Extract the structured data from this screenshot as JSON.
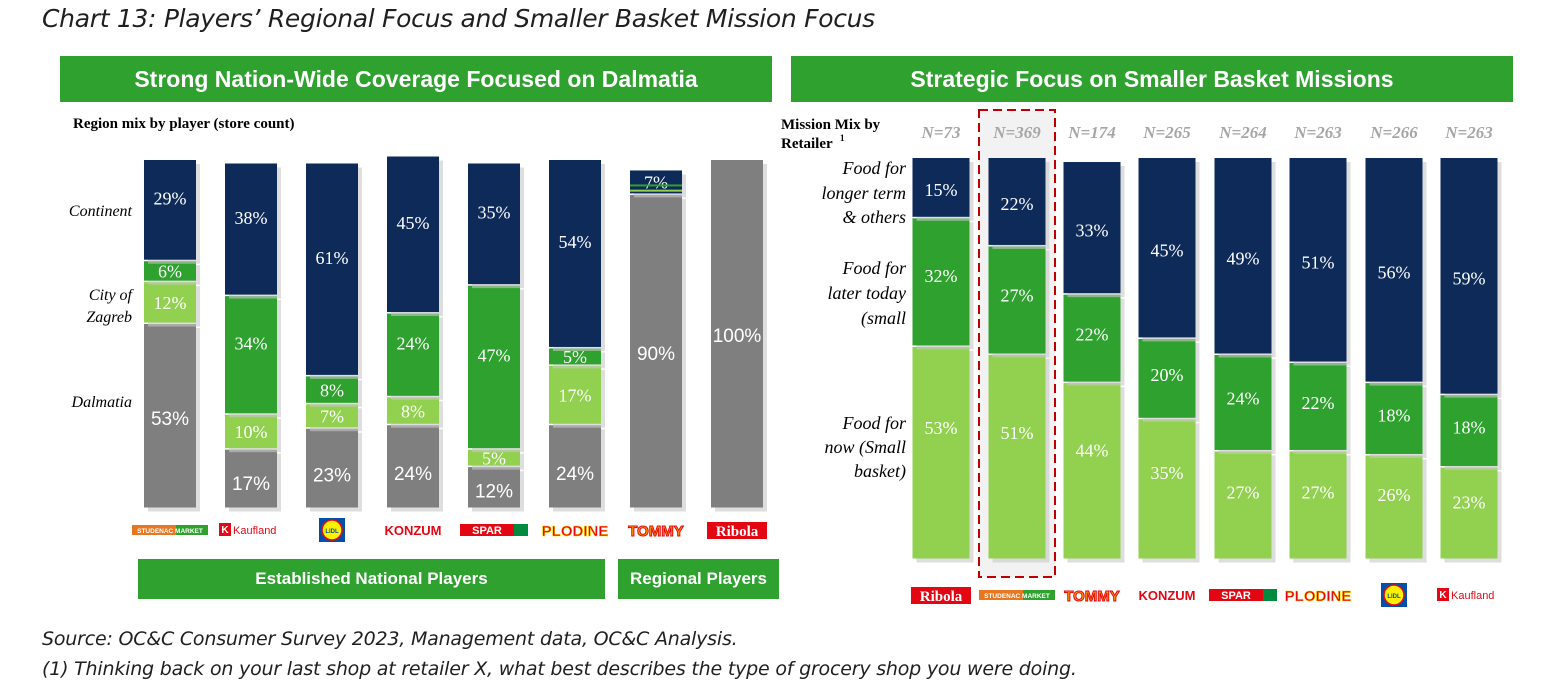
{
  "page": {
    "title": "Chart 13: Players’ Regional Focus and Smaller Basket Mission Focus",
    "source": "Source: OC&C Consumer Survey 2023, Management data, OC&C Analysis.",
    "footnote": "(1) Thinking back on your last shop at retailer X, what best describes the type of grocery shop you were doing."
  },
  "colors": {
    "navy": "#0d2a58",
    "green": "#2ea12e",
    "light_green": "#92d050",
    "grey": "#7f7f7f",
    "band_green": "#2ea12e",
    "highlight_red": "#c00000"
  },
  "chart_data": [
    {
      "type": "bar",
      "stacked": true,
      "title": "Strong Nation-Wide Coverage Focused on Dalmatia",
      "subtitle": "Region mix by player (store count)",
      "categories": [
        "Studenac Market",
        "Kaufland",
        "Lidl",
        "Konzum",
        "Spar",
        "Plodine",
        "Tommy",
        "Ribola"
      ],
      "series": [
        {
          "name": "Dalmatia",
          "color": "grey",
          "values": [
            53,
            17,
            23,
            24,
            12,
            24,
            90,
            100
          ]
        },
        {
          "name": "City of Zagreb",
          "color": "light_green",
          "values": [
            12,
            10,
            7,
            8,
            5,
            17,
            null,
            null
          ]
        },
        {
          "name": "",
          "color": "green",
          "values": [
            6,
            34,
            8,
            24,
            47,
            5,
            null,
            null
          ]
        },
        {
          "name": "Continent",
          "color": "navy",
          "values": [
            29,
            38,
            61,
            45,
            35,
            54,
            7,
            null
          ]
        }
      ],
      "row_labels": [
        "Continent",
        "City of Zagreb",
        "Dalmatia"
      ],
      "groups": [
        {
          "label": "Established National Players"
        },
        {
          "label": "Regional Players"
        }
      ],
      "ylim": [
        0,
        100
      ]
    },
    {
      "type": "bar",
      "stacked": true,
      "title": "Strategic Focus on Smaller Basket Missions",
      "subtitle": "Mission Mix by Retailer",
      "subtitle_sup": "1",
      "categories": [
        "Ribola",
        "Studenac Market",
        "Tommy",
        "Konzum",
        "Spar",
        "Plodine",
        "Lidl",
        "Kaufland"
      ],
      "sample_sizes": [
        "N=73",
        "N=369",
        "N=174",
        "N=265",
        "N=264",
        "N=263",
        "N=266",
        "N=263"
      ],
      "highlighted": "Studenac Market",
      "series": [
        {
          "name": "Food for now (Small basket)",
          "color": "light_green",
          "values": [
            53,
            51,
            44,
            35,
            27,
            27,
            26,
            23
          ]
        },
        {
          "name": "Food for later today (small",
          "color": "green",
          "values": [
            32,
            27,
            22,
            20,
            24,
            22,
            18,
            18
          ]
        },
        {
          "name": "Food for longer term & others",
          "color": "navy",
          "values": [
            15,
            22,
            33,
            45,
            49,
            51,
            56,
            59
          ]
        }
      ],
      "ylim": [
        0,
        100
      ]
    }
  ],
  "logos": {
    "studenac": "STUDENAC MARKET",
    "kaufland": "Kaufland",
    "lidl": "LIDL",
    "konzum": "KONZUM",
    "spar": "SPAR",
    "plodine": "PLODINE",
    "tommy": "TOMMY",
    "ribola": "Ribola"
  }
}
